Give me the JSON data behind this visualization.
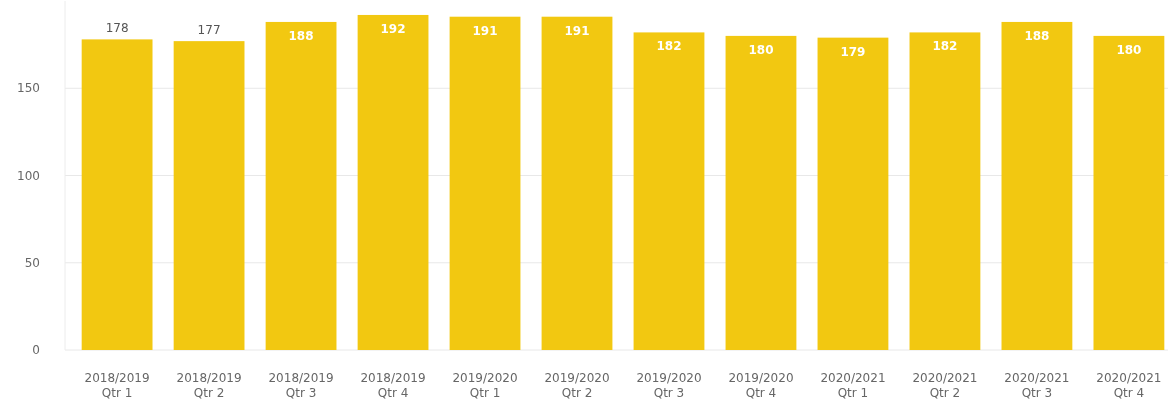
{
  "chart_data": {
    "type": "bar",
    "categories": [
      "2018/2019 Qtr 1",
      "2018/2019 Qtr 2",
      "2018/2019 Qtr 3",
      "2018/2019 Qtr 4",
      "2019/2020 Qtr 1",
      "2019/2020 Qtr 2",
      "2019/2020 Qtr 3",
      "2019/2020 Qtr 4",
      "2020/2021 Qtr 1",
      "2020/2021 Qtr 2",
      "2020/2021 Qtr 3",
      "2020/2021 Qtr 4"
    ],
    "values": [
      178,
      177,
      188,
      192,
      191,
      191,
      182,
      180,
      179,
      182,
      188,
      180
    ],
    "color": "#f2c811",
    "ylim": [
      0,
      200
    ],
    "yticks": [
      0,
      50,
      100,
      150
    ],
    "grid": "y",
    "data_labels": true
  }
}
